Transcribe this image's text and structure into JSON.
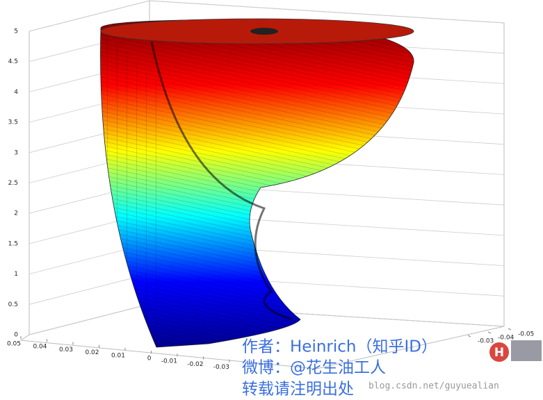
{
  "chart_data": {
    "type": "surface3d",
    "zlim": [
      0,
      5
    ],
    "zticks": [
      0,
      0.5,
      1,
      1.5,
      2,
      2.5,
      3,
      3.5,
      4,
      4.5,
      5
    ],
    "xlim": [
      0.05,
      -0.05
    ],
    "xticks": [
      0.05,
      0.04,
      0.03,
      0.02,
      0.01,
      0,
      -0.01,
      -0.02,
      -0.03
    ],
    "ylim": [
      -0.05,
      0.05
    ],
    "yticks": [
      -0.05,
      -0.04,
      -0.03
    ],
    "grid": true,
    "colormap": [
      "#00008f",
      "#0000ff",
      "#00ffff",
      "#ffff00",
      "#ff0000",
      "#7f0000"
    ]
  },
  "watermark": {
    "lines": [
      "作者：Heinrich（知乎ID）",
      "微博：@花生油工人",
      "转载请注明出处"
    ],
    "blog": "blog.csdn.net/guyuealian"
  }
}
